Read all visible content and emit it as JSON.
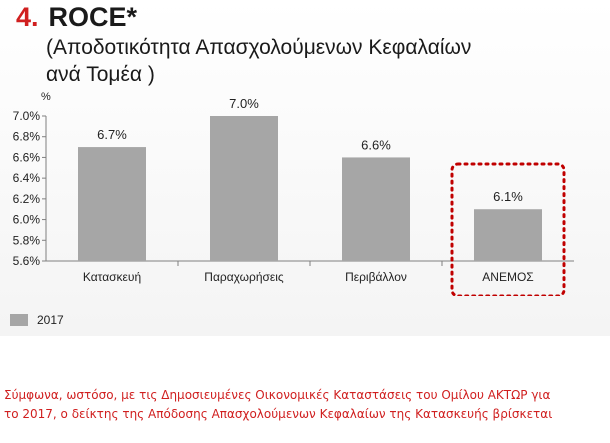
{
  "header": {
    "number": "4.",
    "title": "ROCE*",
    "subtitle_line1": "(Αποδοτικότητα Απασχολούμενων Κεφαλαίων",
    "subtitle_line2": "ανά Τομέα )"
  },
  "chart_data": {
    "type": "bar",
    "title": "ROCE*",
    "ylabel": "%",
    "xlabel": "",
    "categories": [
      "Κατασκευή",
      "Παραχωρήσεις",
      "Περιβάλλον",
      "ΑΝΕΜΟΣ"
    ],
    "series": [
      {
        "name": "2017",
        "values": [
          6.7,
          7.0,
          6.6,
          6.1
        ],
        "color": "#a6a6a6"
      }
    ],
    "value_labels": [
      "6.7%",
      "7.0%",
      "6.6%",
      "6.1%"
    ],
    "ylim": [
      5.6,
      7.0
    ],
    "yticks": [
      5.6,
      5.8,
      6.0,
      6.2,
      6.4,
      6.6,
      6.8,
      7.0
    ],
    "ytick_labels": [
      "5.6%",
      "5.8%",
      "6.0%",
      "6.2%",
      "6.4%",
      "6.6%",
      "6.8%",
      "7.0%"
    ],
    "grid": false,
    "legend": "bottom-left",
    "highlight_category": "ΑΝΕΜΟΣ",
    "highlight_color": "#c00000"
  },
  "footer": {
    "line1": "Σύμφωνα, ωστόσο, με τις Δημοσιευμένες Οικονομικές Καταστάσεις του Ομίλου ΑΚΤΩΡ για",
    "line2": "το 2017, ο δείκτης της Απόδοσης Απασχολούμενων Κεφαλαίων της Κατασκευής βρίσκεται"
  }
}
